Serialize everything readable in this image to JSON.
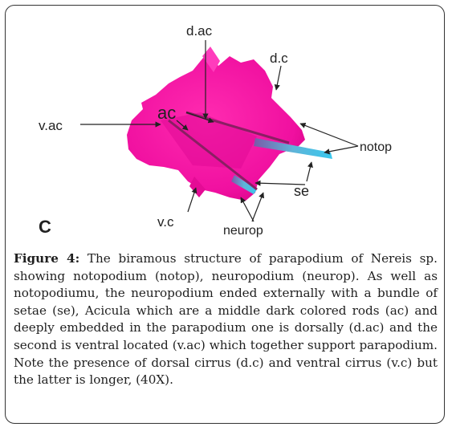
{
  "figure": {
    "panel_letter": "C",
    "labels": {
      "d_ac": "d.ac",
      "d_c": "d.c",
      "ac": "ac",
      "v_ac": "v.ac",
      "notop": "notop",
      "se": "se",
      "v_c": "v.c",
      "neurop": "neurop"
    },
    "colors": {
      "parapodium": "#ff1aa8",
      "parapodium_dark": "#d0007f",
      "setae": "#56c8e8",
      "rods": "#8a1f63",
      "frame": "#333333"
    }
  },
  "caption": {
    "label": "Figure 4:",
    "text": " The biramous structure of parapodium of Nereis sp. showing notopodium (notop), neuropodium (neurop). As well as notopodiumu, the neuropodium ended externally with a bundle of setae (se), Acicula which are a middle dark colored rods (ac) and deeply embedded in the parapodium one is dorsally (d.ac) and the second is ventral located (v.ac) which together support parapodium. Note the presence of dorsal cirrus (d.c) and ventral cirrus (v.c) but the latter is longer, (40X)."
  }
}
